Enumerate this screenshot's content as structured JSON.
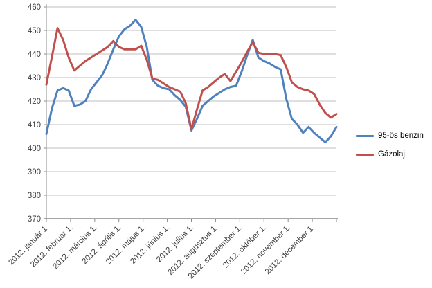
{
  "chart_data": {
    "type": "line",
    "title": "",
    "x_axis": {
      "tick_labels": [
        "2012. január 1.",
        "2012. február 1.",
        "2012. március 1.",
        "2012. április 1.",
        "2012. május 1.",
        "2012. június 1.",
        "2012. július 1.",
        "2012. augusztus 1.",
        "2012. szeptember 1.",
        "2012. október 1.",
        "2012. november 1.",
        "2012. december 1."
      ],
      "points_per_series": 53,
      "sampling": "weekly"
    },
    "y_axis": {
      "min": 370,
      "max": 460,
      "step": 10,
      "tick_labels": [
        "370",
        "380",
        "390",
        "400",
        "410",
        "420",
        "430",
        "440",
        "450",
        "460"
      ]
    },
    "grid": "horizontal",
    "legend_position": "right",
    "series": [
      {
        "name": "95-ös benzin",
        "color": "#4F81BD",
        "values": [
          406,
          417,
          424.5,
          425.5,
          424.5,
          418,
          418.5,
          420,
          425,
          428,
          431,
          436,
          442,
          447.5,
          450.5,
          452,
          454.5,
          451.5,
          443,
          429,
          426.5,
          425.5,
          425,
          422.5,
          420.5,
          417.5,
          407.5,
          412.5,
          418,
          420,
          422,
          423.5,
          425,
          426,
          426.5,
          432.5,
          439.5,
          446,
          438.5,
          437,
          436,
          434.5,
          433.5,
          421,
          412.5,
          410,
          406.5,
          409,
          406.5,
          404.5,
          402.5,
          405,
          409
        ]
      },
      {
        "name": "Gázolaj",
        "color": "#C0504D",
        "values": [
          427,
          439,
          451,
          446,
          438.5,
          433,
          435,
          437,
          438.5,
          440,
          441.5,
          443,
          445.5,
          443,
          442,
          442,
          442,
          443.5,
          437.5,
          429.5,
          429,
          427.5,
          426,
          425,
          424,
          419,
          408,
          416.5,
          424.5,
          426,
          428,
          430,
          431.5,
          428.5,
          432.5,
          436.5,
          441,
          445,
          440.5,
          440,
          440,
          440,
          439.5,
          434.5,
          428,
          426,
          425,
          424.5,
          423,
          418.5,
          415,
          413,
          414.5
        ]
      }
    ],
    "colors": {
      "gridline": "#bfbfbf",
      "axis_line": "#898989",
      "tick_text": "#3d3d3d",
      "background": "#ffffff"
    }
  }
}
